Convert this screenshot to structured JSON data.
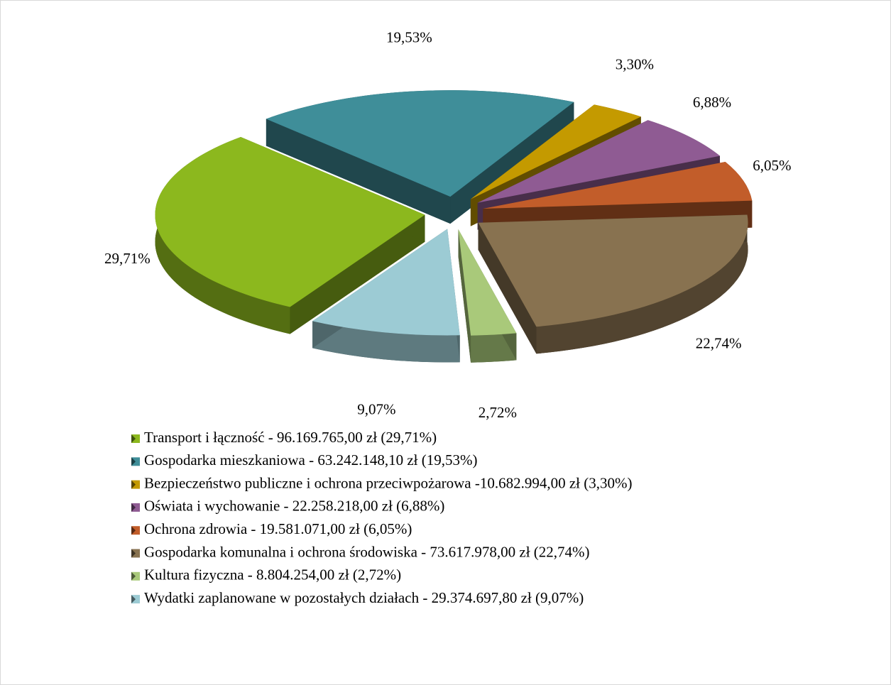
{
  "chart_data": {
    "type": "pie3d",
    "categories": [
      "Transport i łączność - 96.169.765,00 zł (29,71%)",
      "Gospodarka mieszkaniowa - 63.242.148,10 zł (19,53%)",
      "Bezpieczeństwo publiczne i ochrona przeciwpożarowa -10.682.994,00 zł (3,30%)",
      "Oświata i wychowanie - 22.258.218,00 zł (6,88%)",
      "Ochrona zdrowia - 19.581.071,00 zł (6,05%)",
      "Gospodarka komunalna i ochrona środowiska - 73.617.978,00 zł (22,74%)",
      "Kultura fizyczna - 8.804.254,00 zł (2,72%)",
      "Wydatki zaplanowane w pozostałych działach - 29.374.697,80 zł (9,07%)"
    ],
    "values": [
      29.71,
      19.53,
      3.3,
      6.88,
      6.05,
      22.74,
      2.72,
      9.07
    ],
    "value_labels": [
      "29,71%",
      "19,53%",
      "3,30%",
      "6,88%",
      "6,05%",
      "22,74%",
      "2,72%",
      "9,07%"
    ],
    "colors": [
      "#8cb81e",
      "#3f8e99",
      "#c49a00",
      "#8f5b93",
      "#c25d2a",
      "#887250",
      "#a9c97a",
      "#9ccbd4"
    ],
    "legend": "bottom"
  }
}
